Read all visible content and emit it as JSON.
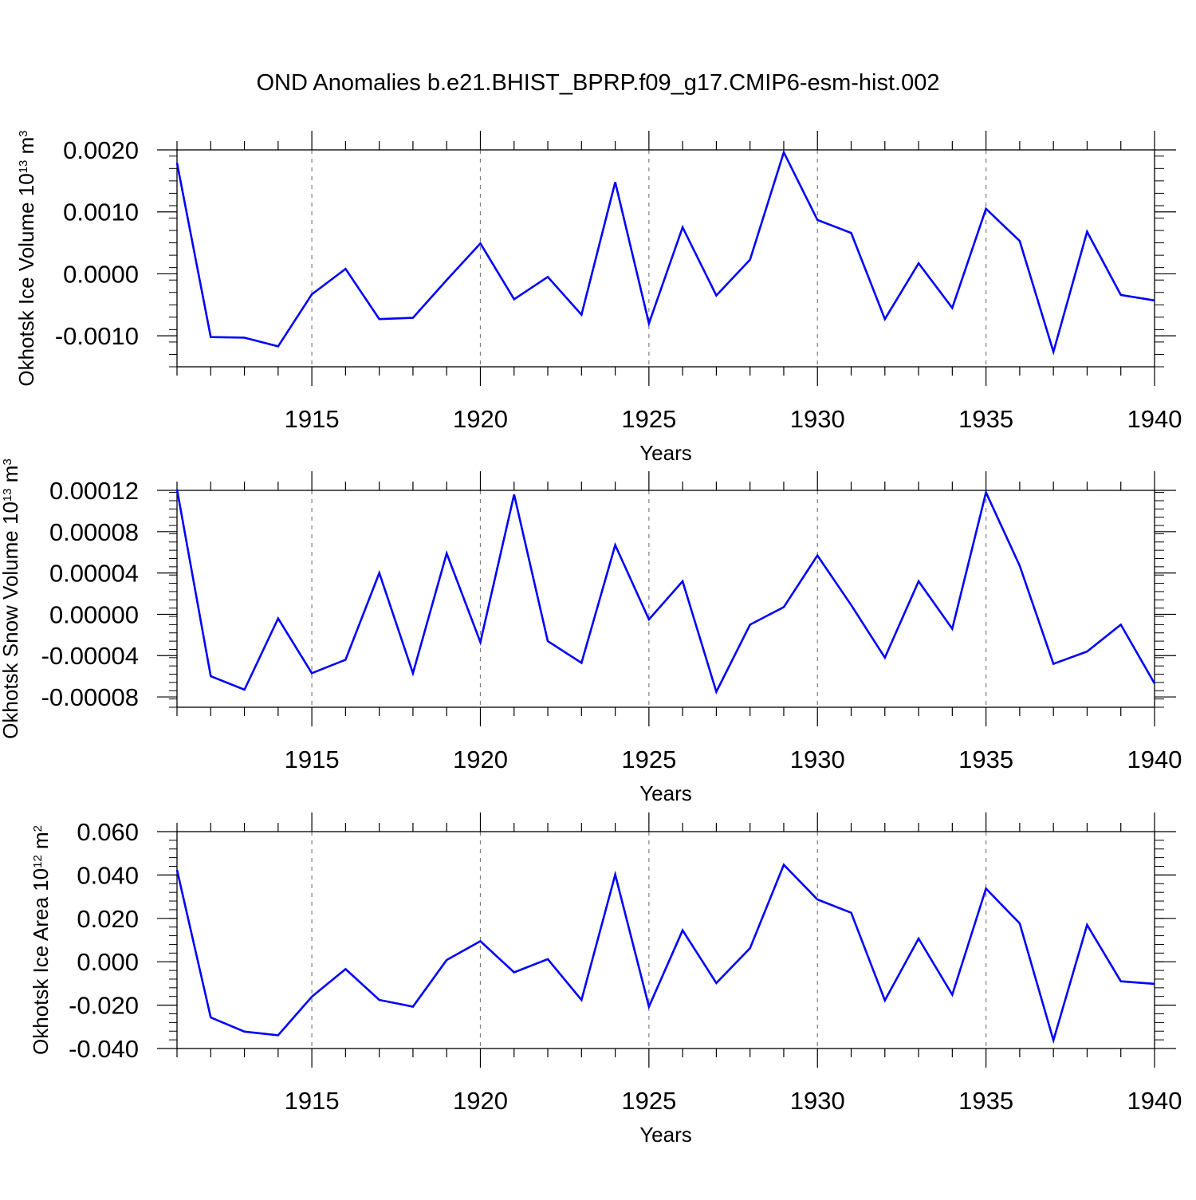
{
  "title": "OND Anomalies b.e21.BHIST_BPRP.f09_g17.CMIP6-esm-hist.002",
  "colors": {
    "line": "#0000ff",
    "axis": "#000000",
    "grid": "#7f7f7f"
  },
  "chart_data": [
    {
      "type": "line",
      "ylabel": "Okhotsk Ice Volume 10",
      "ylabel_exp": "13",
      "ylabel_unit": "m",
      "ylabel_unit_exp": "3",
      "xlabel": "Years",
      "xlim": [
        1911,
        1940
      ],
      "ylim": [
        -0.0015,
        0.002
      ],
      "yticks": [
        -0.001,
        0.0,
        0.001,
        0.002
      ],
      "yticklabels": [
        "-0.0010",
        "0.0000",
        "0.0010",
        "0.0020"
      ],
      "xticks": [
        1915,
        1920,
        1925,
        1930,
        1935,
        1940
      ],
      "xticklabels": [
        "1915",
        "1920",
        "1925",
        "1930",
        "1935",
        "1940"
      ],
      "grid_x": [
        1915,
        1920,
        1925,
        1930,
        1935
      ],
      "x": [
        1911,
        1912,
        1913,
        1914,
        1915,
        1916,
        1917,
        1918,
        1919,
        1920,
        1921,
        1922,
        1923,
        1924,
        1925,
        1926,
        1927,
        1928,
        1929,
        1930,
        1931,
        1932,
        1933,
        1934,
        1935,
        1936,
        1937,
        1938,
        1939,
        1940
      ],
      "values": [
        0.00179,
        -0.00102,
        -0.00103,
        -0.00117,
        -0.00033,
        8e-05,
        -0.00073,
        -0.00071,
        -0.0001,
        0.00049,
        -0.00041,
        -5e-05,
        -0.00066,
        0.00148,
        -0.0008,
        0.00075,
        -0.00035,
        0.00023,
        0.00196,
        0.00087,
        0.00066,
        -0.00073,
        0.00017,
        -0.00055,
        0.00105,
        0.00053,
        -0.00126,
        0.00068,
        -0.00034,
        -0.00043
      ]
    },
    {
      "type": "line",
      "ylabel": "Okhotsk Snow Volume 10",
      "ylabel_exp": "13",
      "ylabel_unit": "m",
      "ylabel_unit_exp": "3",
      "xlabel": "Years",
      "xlim": [
        1911,
        1940
      ],
      "ylim": [
        -9e-05,
        0.00012
      ],
      "yticks": [
        -8e-05,
        -4e-05,
        0.0,
        4e-05,
        8e-05,
        0.00012
      ],
      "yticklabels": [
        "-0.00008",
        "-0.00004",
        "0.00000",
        "0.00004",
        "0.00008",
        "0.00012"
      ],
      "xticks": [
        1915,
        1920,
        1925,
        1930,
        1935,
        1940
      ],
      "xticklabels": [
        "1915",
        "1920",
        "1925",
        "1930",
        "1935",
        "1940"
      ],
      "grid_x": [
        1915,
        1920,
        1925,
        1930,
        1935
      ],
      "x": [
        1911,
        1912,
        1913,
        1914,
        1915,
        1916,
        1917,
        1918,
        1919,
        1920,
        1921,
        1922,
        1923,
        1924,
        1925,
        1926,
        1927,
        1928,
        1929,
        1930,
        1931,
        1932,
        1933,
        1934,
        1935,
        1936,
        1937,
        1938,
        1939,
        1940
      ],
      "values": [
        0.000121,
        -6e-05,
        -7.3e-05,
        -4e-06,
        -5.7e-05,
        -4.4e-05,
        4e-05,
        -5.7e-05,
        5.9e-05,
        -2.7e-05,
        0.000116,
        -2.6e-05,
        -4.7e-05,
        6.7e-05,
        -5e-06,
        3.2e-05,
        -7.5e-05,
        -1e-05,
        7e-06,
        5.7e-05,
        9e-06,
        -4.2e-05,
        3.2e-05,
        -1.4e-05,
        0.000118,
        4.7e-05,
        -4.8e-05,
        -3.6e-05,
        -1e-05,
        -6.7e-05
      ]
    },
    {
      "type": "line",
      "ylabel": "Okhotsk Ice Area 10",
      "ylabel_exp": "12",
      "ylabel_unit": "m",
      "ylabel_unit_exp": "2",
      "xlabel": "Years",
      "xlim": [
        1911,
        1940
      ],
      "ylim": [
        -0.04,
        0.06
      ],
      "yticks": [
        -0.04,
        -0.02,
        0.0,
        0.02,
        0.04,
        0.06
      ],
      "yticklabels": [
        "-0.040",
        "-0.020",
        "0.000",
        "0.020",
        "0.040",
        "0.060"
      ],
      "xticks": [
        1915,
        1920,
        1925,
        1930,
        1935,
        1940
      ],
      "xticklabels": [
        "1915",
        "1920",
        "1925",
        "1930",
        "1935",
        "1940"
      ],
      "grid_x": [
        1915,
        1920,
        1925,
        1930,
        1935
      ],
      "x": [
        1911,
        1912,
        1913,
        1914,
        1915,
        1916,
        1917,
        1918,
        1919,
        1920,
        1921,
        1922,
        1923,
        1924,
        1925,
        1926,
        1927,
        1928,
        1929,
        1930,
        1931,
        1932,
        1933,
        1934,
        1935,
        1936,
        1937,
        1938,
        1939,
        1940
      ],
      "values": [
        0.0423,
        -0.0257,
        -0.0322,
        -0.0339,
        -0.0161,
        -0.0034,
        -0.0176,
        -0.0207,
        0.0008,
        0.0095,
        -0.0049,
        0.0012,
        -0.0176,
        0.0402,
        -0.0207,
        0.0145,
        -0.0098,
        0.0063,
        0.0447,
        0.0287,
        0.0226,
        -0.0178,
        0.0107,
        -0.0152,
        0.0337,
        0.0177,
        -0.0362,
        0.017,
        -0.009,
        -0.0102
      ]
    }
  ]
}
